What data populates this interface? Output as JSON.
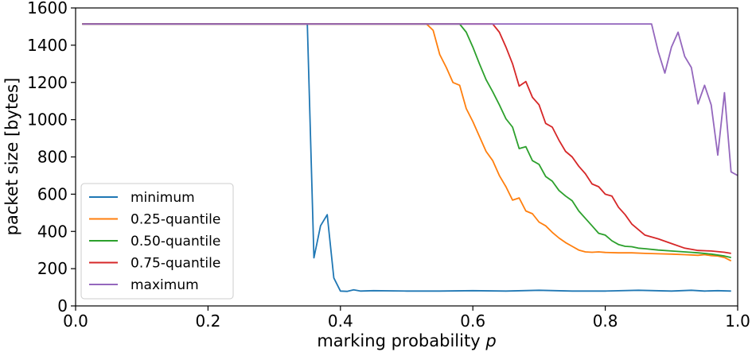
{
  "chart_data": {
    "type": "line",
    "title": "",
    "xlabel": "marking probability",
    "xlabel_var": "p",
    "ylabel": "packet size [bytes]",
    "xlim": [
      0.0,
      1.0
    ],
    "ylim": [
      0,
      1600
    ],
    "xticks": [
      0.0,
      0.2,
      0.4,
      0.6,
      0.8,
      1.0
    ],
    "xtick_labels": [
      "0.0",
      "0.2",
      "0.4",
      "0.6",
      "0.8",
      "1.0"
    ],
    "yticks": [
      0,
      200,
      400,
      600,
      800,
      1000,
      1200,
      1400,
      1600
    ],
    "ytick_labels": [
      "0",
      "200",
      "400",
      "600",
      "800",
      "1000",
      "1200",
      "1400",
      "1600"
    ],
    "grid": false,
    "legend_position": "lower-left",
    "series": [
      {
        "name": "minimum",
        "color": "#1f77b4",
        "points": [
          [
            0.01,
            1514
          ],
          [
            0.35,
            1514
          ],
          [
            0.36,
            258
          ],
          [
            0.37,
            430
          ],
          [
            0.38,
            490
          ],
          [
            0.39,
            150
          ],
          [
            0.4,
            80
          ],
          [
            0.41,
            78
          ],
          [
            0.42,
            86
          ],
          [
            0.43,
            80
          ],
          [
            0.45,
            82
          ],
          [
            0.5,
            80
          ],
          [
            0.55,
            80
          ],
          [
            0.6,
            82
          ],
          [
            0.65,
            80
          ],
          [
            0.7,
            84
          ],
          [
            0.75,
            80
          ],
          [
            0.8,
            80
          ],
          [
            0.85,
            84
          ],
          [
            0.9,
            80
          ],
          [
            0.93,
            84
          ],
          [
            0.95,
            80
          ],
          [
            0.97,
            82
          ],
          [
            0.99,
            80
          ]
        ]
      },
      {
        "name": "0.25-quantile",
        "color": "#ff7f0e",
        "points": [
          [
            0.01,
            1514
          ],
          [
            0.53,
            1514
          ],
          [
            0.54,
            1480
          ],
          [
            0.55,
            1350
          ],
          [
            0.56,
            1280
          ],
          [
            0.57,
            1200
          ],
          [
            0.58,
            1185
          ],
          [
            0.59,
            1060
          ],
          [
            0.6,
            990
          ],
          [
            0.61,
            910
          ],
          [
            0.62,
            830
          ],
          [
            0.63,
            780
          ],
          [
            0.64,
            700
          ],
          [
            0.65,
            640
          ],
          [
            0.66,
            568
          ],
          [
            0.67,
            580
          ],
          [
            0.68,
            510
          ],
          [
            0.69,
            495
          ],
          [
            0.7,
            450
          ],
          [
            0.71,
            430
          ],
          [
            0.72,
            395
          ],
          [
            0.73,
            365
          ],
          [
            0.74,
            340
          ],
          [
            0.75,
            320
          ],
          [
            0.76,
            300
          ],
          [
            0.77,
            290
          ],
          [
            0.78,
            288
          ],
          [
            0.79,
            290
          ],
          [
            0.8,
            287
          ],
          [
            0.82,
            285
          ],
          [
            0.84,
            285
          ],
          [
            0.86,
            282
          ],
          [
            0.88,
            280
          ],
          [
            0.9,
            278
          ],
          [
            0.92,
            275
          ],
          [
            0.94,
            272
          ],
          [
            0.95,
            275
          ],
          [
            0.96,
            270
          ],
          [
            0.97,
            268
          ],
          [
            0.98,
            260
          ],
          [
            0.99,
            242
          ]
        ]
      },
      {
        "name": "0.50-quantile",
        "color": "#2ca02c",
        "points": [
          [
            0.01,
            1514
          ],
          [
            0.58,
            1514
          ],
          [
            0.59,
            1470
          ],
          [
            0.6,
            1390
          ],
          [
            0.61,
            1300
          ],
          [
            0.62,
            1215
          ],
          [
            0.63,
            1150
          ],
          [
            0.64,
            1080
          ],
          [
            0.65,
            1005
          ],
          [
            0.66,
            960
          ],
          [
            0.67,
            845
          ],
          [
            0.68,
            855
          ],
          [
            0.69,
            780
          ],
          [
            0.7,
            760
          ],
          [
            0.71,
            695
          ],
          [
            0.72,
            670
          ],
          [
            0.73,
            620
          ],
          [
            0.74,
            590
          ],
          [
            0.75,
            565
          ],
          [
            0.76,
            510
          ],
          [
            0.77,
            470
          ],
          [
            0.78,
            430
          ],
          [
            0.79,
            390
          ],
          [
            0.8,
            380
          ],
          [
            0.81,
            350
          ],
          [
            0.82,
            330
          ],
          [
            0.83,
            320
          ],
          [
            0.84,
            318
          ],
          [
            0.85,
            310
          ],
          [
            0.86,
            307
          ],
          [
            0.88,
            300
          ],
          [
            0.9,
            295
          ],
          [
            0.92,
            290
          ],
          [
            0.94,
            285
          ],
          [
            0.96,
            278
          ],
          [
            0.98,
            268
          ],
          [
            0.99,
            260
          ]
        ]
      },
      {
        "name": "0.75-quantile",
        "color": "#d62728",
        "points": [
          [
            0.01,
            1514
          ],
          [
            0.63,
            1514
          ],
          [
            0.64,
            1470
          ],
          [
            0.65,
            1390
          ],
          [
            0.66,
            1300
          ],
          [
            0.67,
            1180
          ],
          [
            0.68,
            1205
          ],
          [
            0.69,
            1120
          ],
          [
            0.7,
            1080
          ],
          [
            0.71,
            980
          ],
          [
            0.72,
            960
          ],
          [
            0.73,
            890
          ],
          [
            0.74,
            830
          ],
          [
            0.75,
            800
          ],
          [
            0.76,
            750
          ],
          [
            0.77,
            710
          ],
          [
            0.78,
            655
          ],
          [
            0.79,
            640
          ],
          [
            0.8,
            600
          ],
          [
            0.81,
            590
          ],
          [
            0.82,
            530
          ],
          [
            0.83,
            490
          ],
          [
            0.84,
            440
          ],
          [
            0.85,
            410
          ],
          [
            0.86,
            380
          ],
          [
            0.87,
            370
          ],
          [
            0.88,
            360
          ],
          [
            0.9,
            335
          ],
          [
            0.92,
            310
          ],
          [
            0.94,
            298
          ],
          [
            0.96,
            295
          ],
          [
            0.98,
            288
          ],
          [
            0.99,
            282
          ]
        ]
      },
      {
        "name": "maximum",
        "color": "#9467bd",
        "points": [
          [
            0.01,
            1514
          ],
          [
            0.87,
            1514
          ],
          [
            0.88,
            1365
          ],
          [
            0.89,
            1250
          ],
          [
            0.9,
            1390
          ],
          [
            0.91,
            1470
          ],
          [
            0.92,
            1340
          ],
          [
            0.93,
            1280
          ],
          [
            0.94,
            1085
          ],
          [
            0.95,
            1185
          ],
          [
            0.96,
            1080
          ],
          [
            0.97,
            810
          ],
          [
            0.98,
            1145
          ],
          [
            0.99,
            720
          ],
          [
            1.0,
            700
          ]
        ]
      }
    ]
  }
}
